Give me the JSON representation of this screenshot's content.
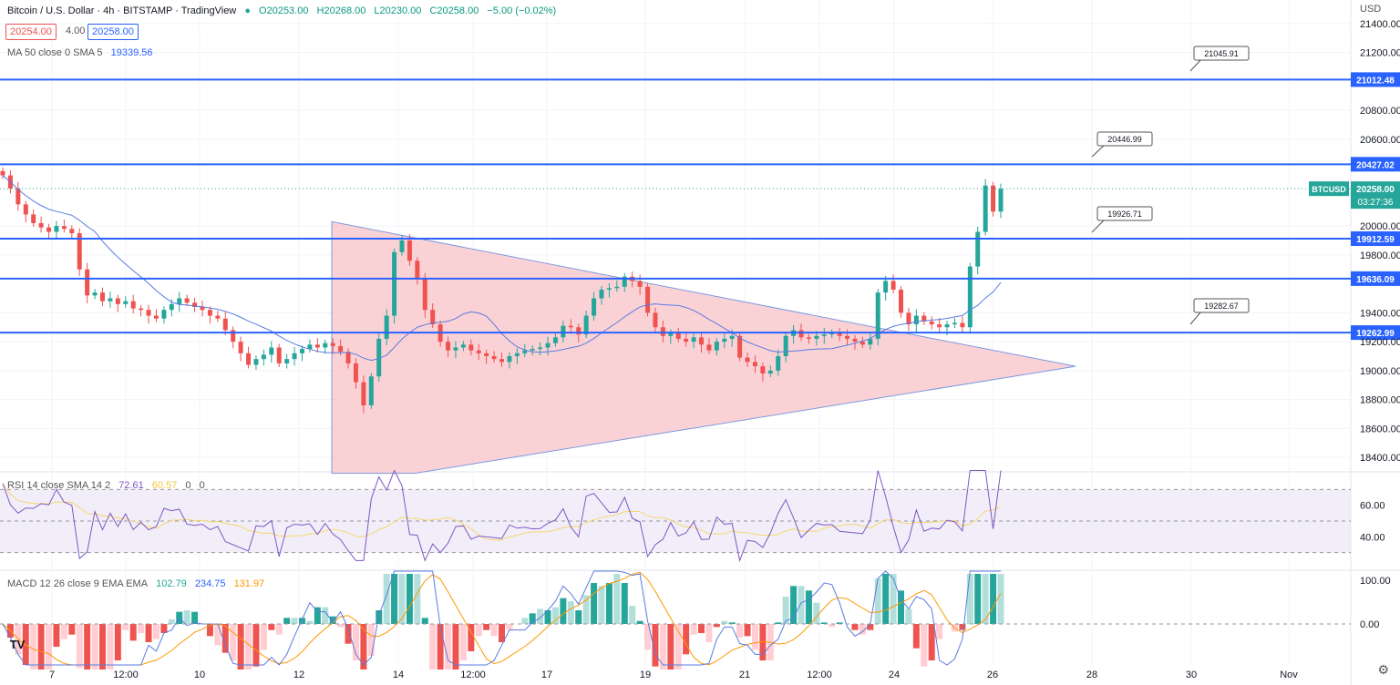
{
  "header": {
    "symbol_title": "Bitcoin / U.S. Dollar · 4h · BITSTAMP · TradingView",
    "ohlc": {
      "open": "O20253.00",
      "high": "H20268.00",
      "low": "L20230.00",
      "close": "C20258.00",
      "change": "−5.00 (−0.02%)"
    },
    "bid": "20254.00",
    "spread": "4.00",
    "ask": "20258.00",
    "ma_label": "MA 50 close 0 SMA 5",
    "ma_value": "19339.56",
    "currency": "USD"
  },
  "rsi_header": {
    "label": "RSI 14 close SMA 14 2",
    "value1": "72.61",
    "value2": "60.57",
    "value3": "0",
    "value4": "0"
  },
  "macd_header": {
    "label": "MACD 12 26 close 9 EMA EMA",
    "hist": "102.79",
    "macd": "234.75",
    "signal": "131.97"
  },
  "colors": {
    "up": "#26a69a",
    "down": "#ef5350",
    "level_line": "#2962ff",
    "triangle_fill": "#f8c3c8",
    "rsi_bg": "#ede7f6"
  },
  "chart_data": {
    "type": "candlestick",
    "timeframe": "4h",
    "x_tick_labels": [
      "7",
      "12:00",
      "10",
      "12",
      "14",
      "12:00",
      "17",
      "19",
      "21",
      "12:00",
      "24",
      "26",
      "28",
      "30",
      "Nov"
    ],
    "y_tick_labels": [
      "21400.00",
      "21200.00",
      "20800.00",
      "20600.00",
      "20000.00",
      "19800.00",
      "19400.00",
      "19200.00",
      "19000.00",
      "18800.00",
      "18600.00",
      "18400.00"
    ],
    "ylim": [
      18300,
      21500
    ],
    "horizontal_levels": [
      21012.48,
      20427.02,
      19912.59,
      19636.09,
      19262.99
    ],
    "level_labels": [
      "21012.48",
      "20427.02",
      "19912.59",
      "19636.09",
      "19262.99"
    ],
    "annotations": [
      {
        "text": "21045.91"
      },
      {
        "text": "20446.99"
      },
      {
        "text": "19926.71"
      },
      {
        "text": "19282.67"
      }
    ],
    "last_price": {
      "symbol": "BTCUSD",
      "price": "20258.00",
      "countdown": "03:27:36"
    },
    "closes": [
      20350,
      20260,
      20150,
      20080,
      20020,
      19990,
      19960,
      20000,
      19980,
      19950,
      19700,
      19520,
      19540,
      19480,
      19500,
      19460,
      19480,
      19430,
      19420,
      19380,
      19360,
      19420,
      19460,
      19500,
      19470,
      19440,
      19420,
      19380,
      19360,
      19280,
      19200,
      19120,
      19040,
      19080,
      19110,
      19160,
      19050,
      19080,
      19120,
      19150,
      19180,
      19160,
      19190,
      19170,
      19130,
      19050,
      18920,
      18760,
      18960,
      19220,
      19380,
      19820,
      19900,
      19760,
      19640,
      19420,
      19320,
      19200,
      19140,
      19160,
      19180,
      19140,
      19120,
      19100,
      19080,
      19060,
      19100,
      19120,
      19140,
      19150,
      19160,
      19190,
      19230,
      19310,
      19300,
      19250,
      19380,
      19500,
      19560,
      19570,
      19580,
      19650,
      19620,
      19580,
      19400,
      19300,
      19240,
      19260,
      19220,
      19200,
      19230,
      19180,
      19140,
      19200,
      19220,
      19240,
      19090,
      19060,
      19030,
      18980,
      19000,
      19100,
      19240,
      19280,
      19230,
      19220,
      19240,
      19250,
      19260,
      19240,
      19220,
      19200,
      19180,
      19220,
      19540,
      19620,
      19560,
      19400,
      19320,
      19380,
      19340,
      19320,
      19300,
      19320,
      19330,
      19300,
      19720,
      19960,
      20280,
      20100,
      20258
    ],
    "rsi": {
      "ylim": [
        20,
        80
      ],
      "ticks": [
        "60.00",
        "40.00"
      ],
      "upper_band": 70,
      "lower_band": 30
    },
    "macd": {
      "ticks": [
        "100.00",
        "0.00"
      ]
    }
  }
}
